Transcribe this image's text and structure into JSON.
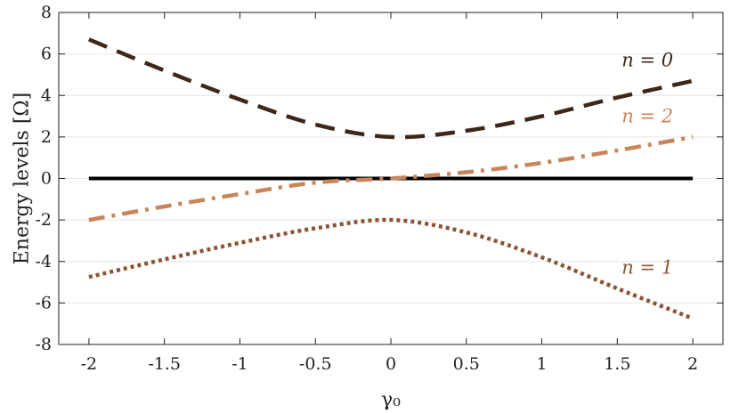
{
  "chart_data": {
    "type": "line",
    "xlabel": "γ₀",
    "ylabel": "Energy levels [Ω]",
    "xlim": [
      -2.2,
      2.2
    ],
    "ylim": [
      -8,
      8
    ],
    "xticks": [
      -2,
      -1.5,
      -1,
      -0.5,
      0,
      0.5,
      1,
      1.5,
      2
    ],
    "xtick_labels": [
      "-2",
      "-1.5",
      "-1",
      "-0.5",
      "0",
      "0.5",
      "1",
      "1.5",
      "2"
    ],
    "yticks": [
      -8,
      -6,
      -4,
      -2,
      0,
      2,
      4,
      6,
      8
    ],
    "ytick_labels": [
      "-8",
      "-6",
      "-4",
      "-2",
      "0",
      "2",
      "4",
      "6",
      "8"
    ],
    "grid": "horizontal",
    "series": [
      {
        "name": "",
        "color": "#000000",
        "style": "solid",
        "x": [
          -2,
          -1.5,
          -1,
          -0.5,
          0,
          0.5,
          1,
          1.5,
          2
        ],
        "y": [
          0,
          0,
          0,
          0,
          0,
          0,
          0,
          0,
          0
        ]
      },
      {
        "name": "n = 0",
        "color": "#3d2719",
        "style": "dashed",
        "x": [
          -2,
          -1.5,
          -1,
          -0.5,
          0,
          0.5,
          1,
          1.5,
          2
        ],
        "y": [
          6.7,
          5.2,
          3.8,
          2.6,
          2.0,
          2.3,
          3.0,
          3.9,
          4.7
        ]
      },
      {
        "name": "n = 2",
        "color": "#c8855a",
        "style": "dashdot",
        "x": [
          -2,
          -1.5,
          -1,
          -0.5,
          0,
          0.5,
          1,
          1.5,
          2
        ],
        "y": [
          -2.0,
          -1.35,
          -0.75,
          -0.2,
          0.0,
          0.3,
          0.75,
          1.35,
          2.0
        ]
      },
      {
        "name": "n = 1",
        "color": "#8a5535",
        "style": "dotted",
        "x": [
          -2,
          -1.5,
          -1,
          -0.5,
          0,
          0.5,
          1,
          1.5,
          2
        ],
        "y": [
          -4.75,
          -3.9,
          -3.1,
          -2.4,
          -2.0,
          -2.6,
          -3.8,
          -5.3,
          -6.75
        ]
      }
    ]
  }
}
